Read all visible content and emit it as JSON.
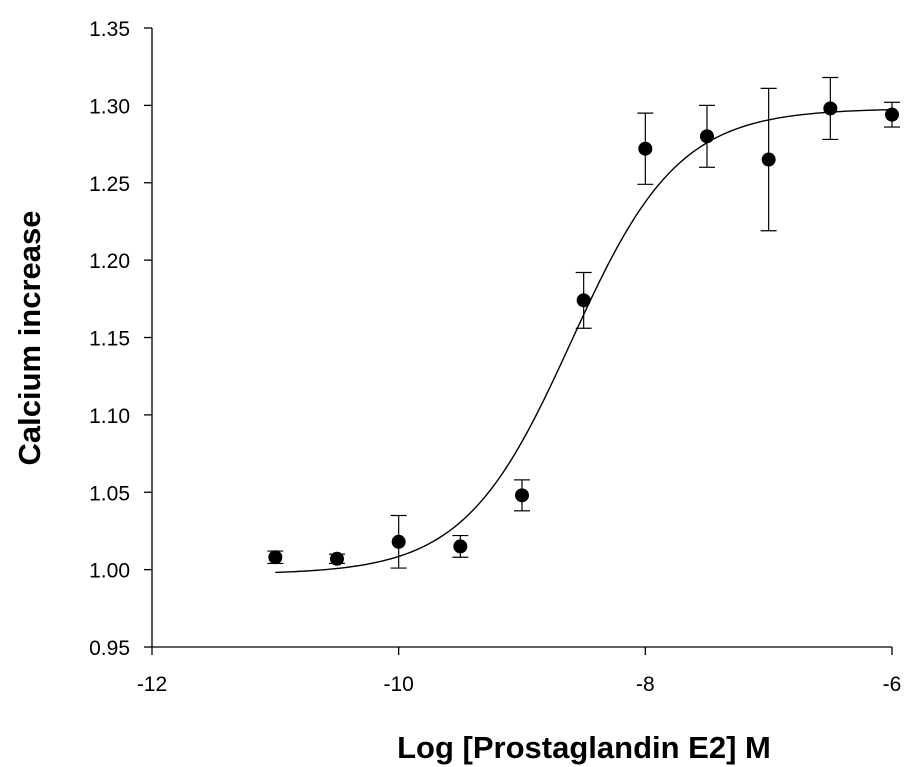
{
  "chart_data": {
    "type": "scatter",
    "title": "",
    "xlabel": "Log [Prostaglandin E2] M",
    "ylabel": "Calcium increase",
    "xlim": [
      -12,
      -6
    ],
    "ylim": [
      0.95,
      1.35
    ],
    "x_ticks": [
      -12,
      -10,
      -8,
      -6
    ],
    "x_tick_labels": [
      "-12",
      "-10",
      "-8",
      "-6"
    ],
    "y_ticks": [
      0.95,
      1.0,
      1.05,
      1.1,
      1.15,
      1.2,
      1.25,
      1.3,
      1.35
    ],
    "y_tick_labels": [
      "0.95",
      "1.00",
      "1.05",
      "1.10",
      "1.15",
      "1.20",
      "1.25",
      "1.30",
      "1.35"
    ],
    "grid": false,
    "legend": "none",
    "series": [
      {
        "x": [
          -11,
          -10.5,
          -10,
          -9.5,
          -9,
          -8.5,
          -8,
          -7.5,
          -7,
          -6.5,
          -6
        ],
        "y": [
          1.008,
          1.007,
          1.018,
          1.015,
          1.048,
          1.174,
          1.272,
          1.28,
          1.265,
          1.298,
          1.294
        ],
        "error": [
          0.004,
          0.003,
          0.017,
          0.007,
          0.01,
          0.018,
          0.023,
          0.02,
          0.046,
          0.02,
          0.008
        ]
      }
    ],
    "fit_curve": {
      "type": "sigmoid",
      "bottom": 0.997,
      "top": 1.298,
      "log_ec50": -8.6,
      "hill_slope": 1.0,
      "x_range": [
        -11,
        -6
      ]
    }
  },
  "colors": {
    "axis": "#000000",
    "marker": "#000000",
    "curve": "#000000",
    "background": "#ffffff"
  }
}
